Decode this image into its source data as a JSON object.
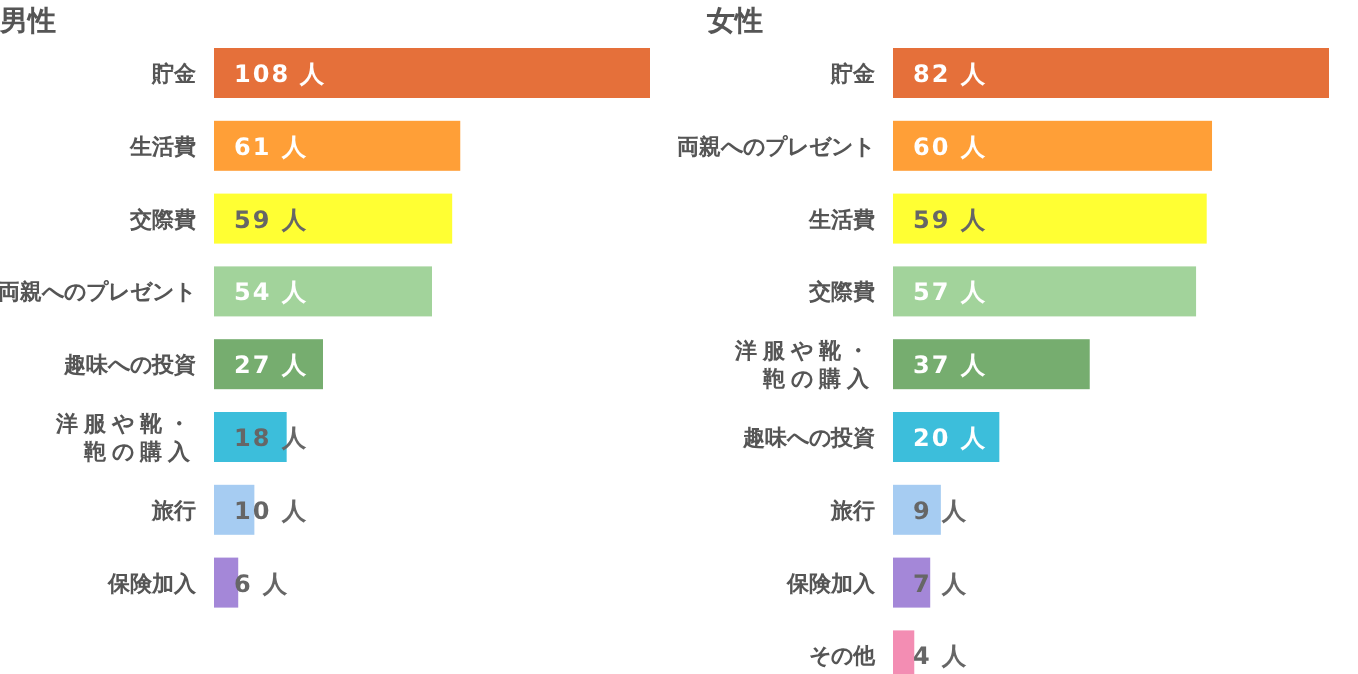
{
  "chart_data": [
    {
      "type": "bar",
      "orientation": "horizontal",
      "title": "男性",
      "categories": [
        "貯金",
        "生活費",
        "交際費",
        "両親へのプレゼント",
        "趣味への投資",
        "洋服や靴・鞄の購入",
        "旅行",
        "保険加入"
      ],
      "values": [
        108,
        61,
        59,
        54,
        27,
        18,
        10,
        6
      ],
      "value_labels": [
        "108 人",
        "61 人",
        "59 人",
        "54 人",
        "27 人",
        "18 人",
        "10 人",
        "6 人"
      ],
      "colors": [
        "#e5703a",
        "#ff9f37",
        "#ffff33",
        "#a2d39b",
        "#76ad6f",
        "#3cbedb",
        "#a6ccf2",
        "#a487d8"
      ]
    },
    {
      "type": "bar",
      "orientation": "horizontal",
      "title": "女性",
      "categories": [
        "貯金",
        "両親へのプレゼント",
        "生活費",
        "交際費",
        "洋服や靴・鞄の購入",
        "趣味への投資",
        "旅行",
        "保険加入",
        "その他"
      ],
      "values": [
        82,
        60,
        59,
        57,
        37,
        20,
        9,
        7,
        4
      ],
      "value_labels": [
        "82 人",
        "60 人",
        "59 人",
        "57 人",
        "37 人",
        "20 人",
        "9 人",
        "7 人",
        "4 人"
      ],
      "colors": [
        "#e5703a",
        "#ff9f37",
        "#ffff33",
        "#a2d39b",
        "#76ad6f",
        "#3cbedb",
        "#a6ccf2",
        "#a487d8",
        "#f38db3"
      ]
    }
  ]
}
